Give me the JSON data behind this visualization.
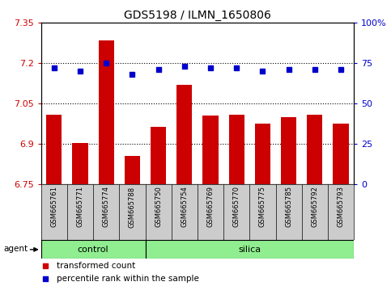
{
  "title": "GDS5198 / ILMN_1650806",
  "samples": [
    "GSM665761",
    "GSM665771",
    "GSM665774",
    "GSM665788",
    "GSM665750",
    "GSM665754",
    "GSM665769",
    "GSM665770",
    "GSM665775",
    "GSM665785",
    "GSM665792",
    "GSM665793"
  ],
  "transformed_count": [
    7.01,
    6.905,
    7.285,
    6.855,
    6.965,
    7.12,
    7.005,
    7.01,
    6.975,
    7.0,
    7.01,
    6.975
  ],
  "percentile_rank": [
    72,
    70,
    75,
    68,
    71,
    73,
    72,
    72,
    70,
    71,
    71,
    71
  ],
  "ylim_left": [
    6.75,
    7.35
  ],
  "ylim_right": [
    0,
    100
  ],
  "yticks_left": [
    6.75,
    6.9,
    7.05,
    7.2,
    7.35
  ],
  "ytick_labels_left": [
    "6.75",
    "6.9",
    "7.05",
    "7.2",
    "7.35"
  ],
  "yticks_right": [
    0,
    25,
    50,
    75,
    100
  ],
  "ytick_labels_right": [
    "0",
    "25",
    "50",
    "75",
    "100%"
  ],
  "hlines": [
    7.2,
    7.05,
    6.9
  ],
  "bar_color": "#CC0000",
  "dot_color": "#0000CC",
  "bar_width": 0.6,
  "legend_items": [
    {
      "label": "transformed count",
      "color": "#CC0000"
    },
    {
      "label": "percentile rank within the sample",
      "color": "#0000CC"
    }
  ],
  "agent_label": "agent",
  "control_label": "control",
  "silica_label": "silica",
  "n_control": 4,
  "n_silica": 8,
  "group_color": "#90EE90"
}
